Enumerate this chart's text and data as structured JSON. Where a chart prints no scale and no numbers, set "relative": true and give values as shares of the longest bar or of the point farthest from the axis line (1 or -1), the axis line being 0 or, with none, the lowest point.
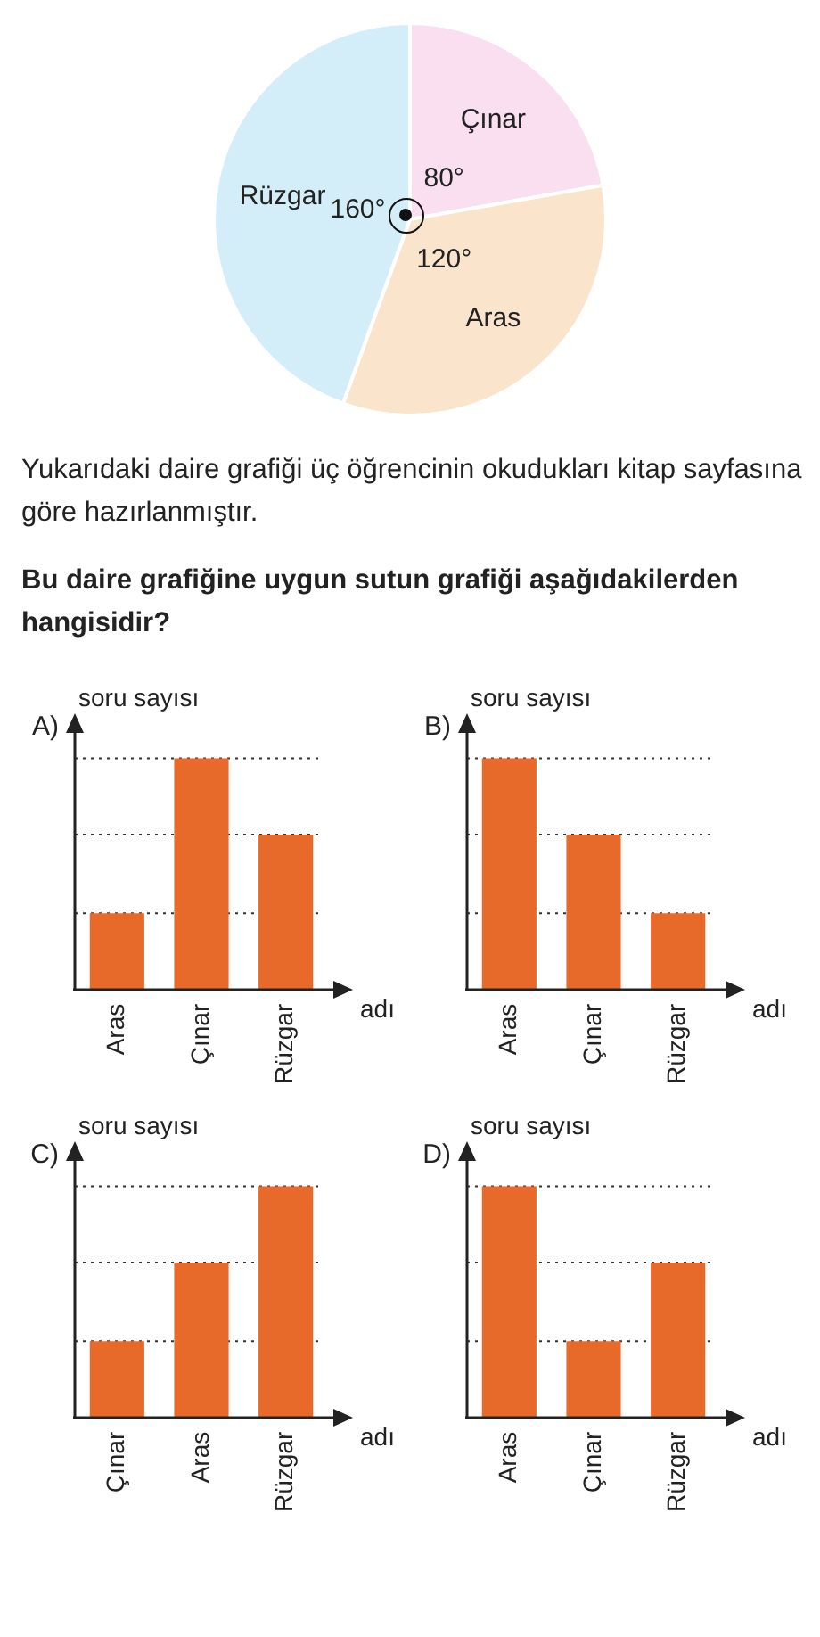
{
  "chart_data": [
    {
      "type": "pie",
      "categories": [
        "Çınar",
        "Aras",
        "Rüzgar"
      ],
      "values": [
        80,
        120,
        160
      ],
      "value_labels": [
        "80°",
        "120°",
        "160°"
      ],
      "colors": [
        "#f9dff0",
        "#fbe4cc",
        "#d4eef9"
      ],
      "annotations": [
        "Yukarıdaki daire grafiği üç öğrencinin okudukları kitap sayfasına göre hazırlanmıştır.",
        "Bu daire grafiğine uygun sutun grafiği aşağıdakilerden hangisidir?"
      ]
    },
    {
      "type": "bar",
      "title": "A)",
      "ylabel": "soru sayısı",
      "xlabel": "adı",
      "categories": [
        "Aras",
        "Çınar",
        "Rüzgar"
      ],
      "values": [
        0.33,
        1,
        0.67
      ],
      "color": "#e86a2a",
      "relative": true,
      "ref_lines": [
        {
          "axis": "y",
          "value": 0.33,
          "line_style": "dotted"
        },
        {
          "axis": "y",
          "value": 0.67,
          "line_style": "dotted"
        },
        {
          "axis": "y",
          "value": 1,
          "line_style": "dotted"
        }
      ]
    },
    {
      "type": "bar",
      "title": "B)",
      "ylabel": "soru sayısı",
      "xlabel": "adı",
      "categories": [
        "Aras",
        "Çınar",
        "Rüzgar"
      ],
      "values": [
        1,
        0.67,
        0.33
      ],
      "color": "#e86a2a",
      "relative": true,
      "ref_lines": [
        {
          "axis": "y",
          "value": 0.33,
          "line_style": "dotted"
        },
        {
          "axis": "y",
          "value": 0.67,
          "line_style": "dotted"
        },
        {
          "axis": "y",
          "value": 1,
          "line_style": "dotted"
        }
      ]
    },
    {
      "type": "bar",
      "title": "C)",
      "ylabel": "soru sayısı",
      "xlabel": "adı",
      "categories": [
        "Çınar",
        "Aras",
        "Rüzgar"
      ],
      "values": [
        0.33,
        0.67,
        1
      ],
      "color": "#e86a2a",
      "relative": true,
      "ref_lines": [
        {
          "axis": "y",
          "value": 0.33,
          "line_style": "dotted"
        },
        {
          "axis": "y",
          "value": 0.67,
          "line_style": "dotted"
        },
        {
          "axis": "y",
          "value": 1,
          "line_style": "dotted"
        }
      ]
    },
    {
      "type": "bar",
      "title": "D)",
      "ylabel": "soru sayısı",
      "xlabel": "adı",
      "categories": [
        "Aras",
        "Çınar",
        "Rüzgar"
      ],
      "values": [
        1,
        0.33,
        0.67
      ],
      "color": "#e86a2a",
      "relative": true,
      "ref_lines": [
        {
          "axis": "y",
          "value": 0.33,
          "line_style": "dotted"
        },
        {
          "axis": "y",
          "value": 0.67,
          "line_style": "dotted"
        },
        {
          "axis": "y",
          "value": 1,
          "line_style": "dotted"
        }
      ]
    }
  ]
}
